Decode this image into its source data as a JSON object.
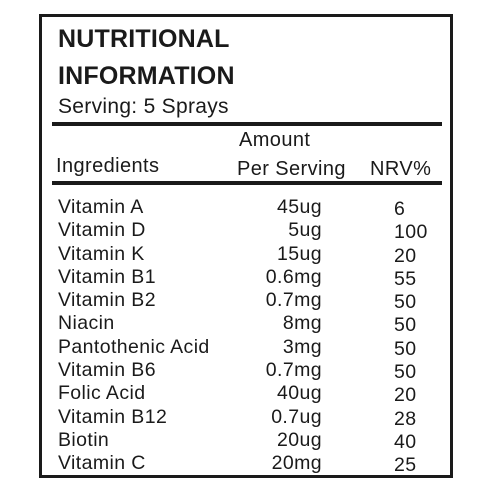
{
  "title": {
    "line1": "NUTRITIONAL",
    "line2": "INFORMATION"
  },
  "serving": "Serving: 5 Sprays",
  "columns": {
    "ingredients": "Ingredients",
    "amount_line1": "Amount",
    "amount_line2": "Per Serving",
    "nrv": "NRV%"
  },
  "rows": [
    {
      "name": "Vitamin A",
      "amount": "45ug",
      "nrv": "6"
    },
    {
      "name": "Vitamin D",
      "amount": "5ug",
      "nrv": "100"
    },
    {
      "name": "Vitamin K",
      "amount": "15ug",
      "nrv": "20"
    },
    {
      "name": "Vitamin B1",
      "amount": "0.6mg",
      "nrv": "55"
    },
    {
      "name": "Vitamin B2",
      "amount": "0.7mg",
      "nrv": "50"
    },
    {
      "name": "Niacin",
      "amount": "8mg",
      "nrv": "50"
    },
    {
      "name": "Pantothenic Acid",
      "amount": "3mg",
      "nrv": "50"
    },
    {
      "name": "Vitamin B6",
      "amount": "0.7mg",
      "nrv": "50"
    },
    {
      "name": "Folic Acid",
      "amount": "40ug",
      "nrv": "20"
    },
    {
      "name": "Vitamin B12",
      "amount": "0.7ug",
      "nrv": "28"
    },
    {
      "name": "Biotin",
      "amount": "20ug",
      "nrv": "40"
    },
    {
      "name": "Vitamin C",
      "amount": "20mg",
      "nrv": "25"
    }
  ]
}
